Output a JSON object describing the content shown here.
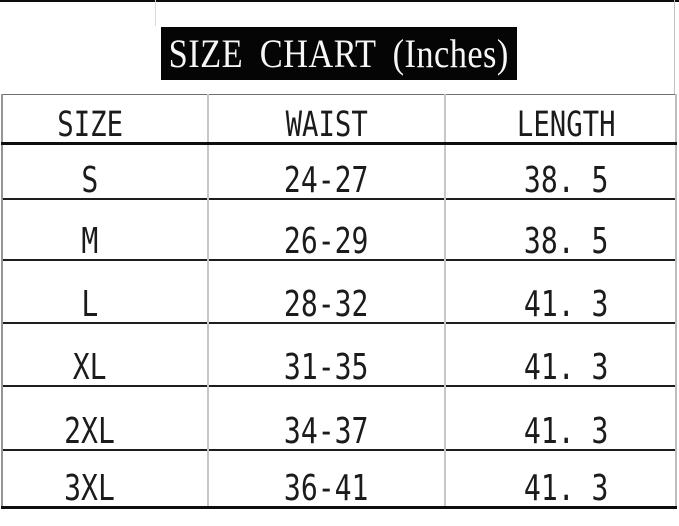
{
  "chart_data": {
    "type": "table",
    "title": "SIZE CHART (Inches)",
    "units": "Inches",
    "columns": [
      "SIZE",
      "WAIST",
      "LENGTH"
    ],
    "rows": [
      [
        "S",
        "24-27",
        "38. 5"
      ],
      [
        "M",
        "26-29",
        "38. 5"
      ],
      [
        "L",
        "28-32",
        "41. 3"
      ],
      [
        "XL",
        "31-35",
        "41. 3"
      ],
      [
        "2XL",
        "34-37",
        "41. 3"
      ],
      [
        "3XL",
        "36-41",
        "41. 3"
      ]
    ]
  },
  "colors": {
    "title_background": "#050505",
    "title_text": "#f7f7f7",
    "grid_dark": "#0e0e0e",
    "grid_light": "#c7c7c7",
    "cell_text": "#1b1b1b"
  }
}
